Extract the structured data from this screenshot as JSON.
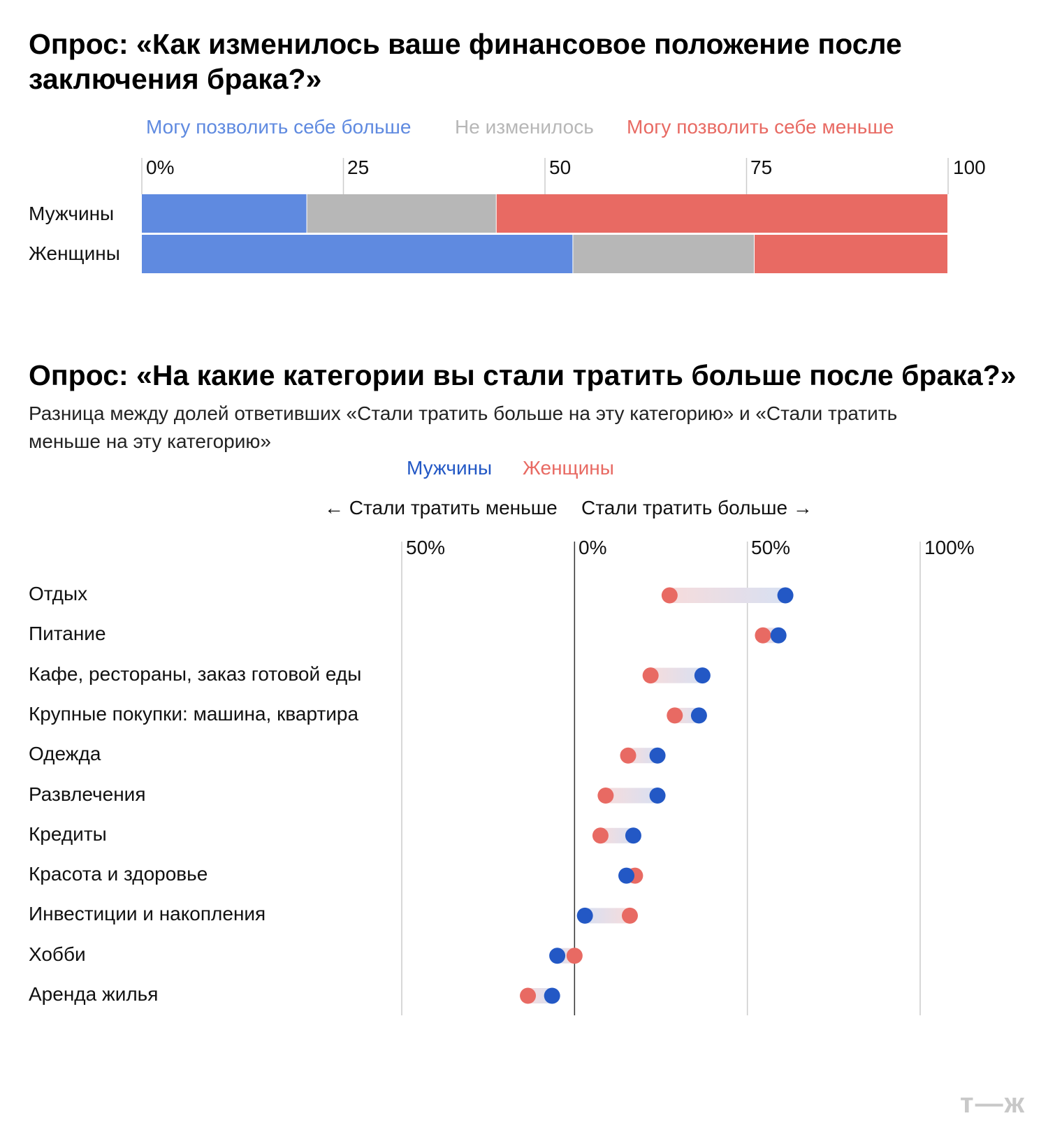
{
  "chart_data": [
    {
      "type": "bar",
      "stacked": true,
      "orientation": "horizontal",
      "title": "Опрос: «Как изменилось ваше финансовое положение после заключения брака?»",
      "categories": [
        "Мужчины",
        "Женщины"
      ],
      "series": [
        {
          "name": "Могу позволить себе больше",
          "color": "#5f8ae0",
          "values": [
            20.5,
            53.5
          ]
        },
        {
          "name": "Не изменилось",
          "color": "#b7b7b7",
          "values": [
            23.5,
            22.5
          ]
        },
        {
          "name": "Могу позволить себе меньше",
          "color": "#e86a63",
          "values": [
            56,
            24
          ]
        }
      ],
      "xlim": [
        0,
        100
      ],
      "ticks": [
        "0%",
        "25",
        "50",
        "75",
        "100"
      ],
      "legend_position": "top"
    },
    {
      "type": "scatter",
      "variant": "dumbbell",
      "title": "Опрос: «На какие категории вы стали тратить больше после брака?»",
      "subtitle": "Разница между долей ответивших «Стали тратить больше на эту категорию» и «Стали тратить меньше на эту категорию»",
      "direction_labels": {
        "left": "← Стали тратить меньше",
        "right": "Стали тратить больше →"
      },
      "categories": [
        "Отдых",
        "Питание",
        "Кафе, рестораны, заказ готовой еды",
        "Крупные покупки: машина, квартира",
        "Одежда",
        "Развлечения",
        "Кредиты",
        "Красота и здоровье",
        "Инвестиции и накопления",
        "Хобби",
        "Аренда жилья"
      ],
      "series": [
        {
          "name": "Мужчины",
          "color": "#2358c5",
          "values": [
            61,
            59,
            37,
            36,
            24,
            24,
            17,
            15,
            3,
            -5,
            -6.5
          ]
        },
        {
          "name": "Женщины",
          "color": "#e86a63",
          "values": [
            27.5,
            54.5,
            22,
            29,
            15.5,
            9,
            7.5,
            17.5,
            16,
            0,
            -13.5
          ]
        }
      ],
      "xlim": [
        -50,
        100
      ],
      "ticks": [
        "50%",
        "0%",
        "50%",
        "100%"
      ],
      "legend_position": "top-center"
    }
  ],
  "logo": "т—ж"
}
